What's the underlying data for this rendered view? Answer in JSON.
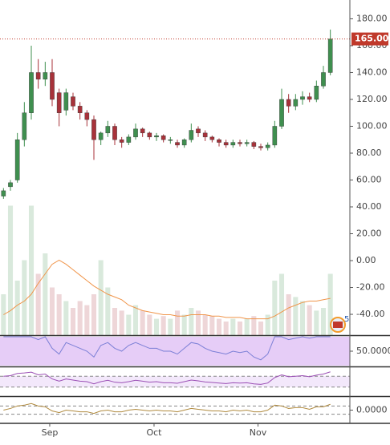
{
  "chart_data": {
    "type": "candlestick",
    "xlim": [
      -0.5,
      47.5
    ],
    "xticks": [
      {
        "value": 6.65,
        "label": "Sep"
      },
      {
        "value": 21.65,
        "label": "Oct"
      },
      {
        "value": 36.6,
        "label": "Nov"
      }
    ],
    "ylim": [
      -55.5,
      194
    ],
    "yticks": [
      {
        "value": 180,
        "label": "180.00"
      },
      {
        "value": 160,
        "label": "160.00"
      },
      {
        "value": 140,
        "label": "140.00"
      },
      {
        "value": 120,
        "label": "120.00"
      },
      {
        "value": 100,
        "label": "100.00"
      },
      {
        "value": 80,
        "label": "80.00"
      },
      {
        "value": 60,
        "label": "60.00"
      },
      {
        "value": 40,
        "label": "40.00"
      },
      {
        "value": 20,
        "label": "20.00"
      },
      {
        "value": 0,
        "label": "0.00"
      },
      {
        "value": -20,
        "label": "-20.00"
      },
      {
        "value": -40,
        "label": "-40.00"
      }
    ],
    "up_color": "#3f8f4f",
    "down_color": "#a8323a",
    "open": [
      48,
      55,
      60,
      90,
      110,
      140,
      135,
      140,
      125,
      112,
      122,
      115,
      110,
      105,
      90,
      95,
      100,
      90,
      88,
      92,
      98,
      95,
      92,
      93,
      90,
      88,
      86,
      90,
      98,
      95,
      92,
      90,
      88,
      86,
      88,
      87,
      88,
      85,
      84,
      86,
      100,
      120,
      115,
      120,
      122,
      120,
      130,
      140
    ],
    "high": [
      54,
      60,
      95,
      118,
      160,
      150,
      148,
      150,
      128,
      128,
      125,
      118,
      112,
      108,
      96,
      104,
      102,
      92,
      94,
      102,
      99,
      96,
      95,
      94,
      92,
      90,
      91,
      102,
      100,
      97,
      93,
      91,
      90,
      90,
      90,
      90,
      89,
      87,
      88,
      104,
      128,
      124,
      124,
      126,
      125,
      134,
      145,
      172
    ],
    "low": [
      46,
      52,
      58,
      85,
      105,
      128,
      130,
      115,
      100,
      108,
      112,
      105,
      100,
      75,
      86,
      92,
      86,
      84,
      86,
      90,
      92,
      90,
      89,
      88,
      87,
      84,
      84,
      88,
      92,
      89,
      88,
      85,
      84,
      84,
      85,
      85,
      83,
      82,
      82,
      84,
      98,
      110,
      112,
      116,
      118,
      118,
      128,
      138
    ],
    "close": [
      52,
      58,
      90,
      110,
      140,
      135,
      140,
      120,
      110,
      125,
      115,
      110,
      105,
      90,
      95,
      100,
      90,
      88,
      92,
      98,
      95,
      92,
      93,
      90,
      90,
      86,
      90,
      97,
      95,
      92,
      90,
      88,
      86,
      88,
      87,
      88,
      85,
      84,
      86,
      100,
      120,
      115,
      120,
      122,
      120,
      130,
      140,
      165
    ],
    "last_price": {
      "value": 165,
      "label": "165.00"
    },
    "last_price_color": "#c0392b",
    "volume_ylim": [
      0,
      100
    ],
    "volume": [
      30,
      95,
      40,
      55,
      95,
      45,
      60,
      35,
      30,
      25,
      20,
      25,
      22,
      30,
      55,
      35,
      20,
      18,
      15,
      22,
      18,
      15,
      12,
      14,
      12,
      18,
      15,
      20,
      18,
      15,
      14,
      12,
      10,
      12,
      10,
      12,
      14,
      10,
      15,
      40,
      45,
      30,
      28,
      25,
      22,
      18,
      20,
      45
    ],
    "volume_ma": [
      15,
      18,
      22,
      25,
      30,
      38,
      45,
      52,
      55,
      52,
      48,
      44,
      40,
      36,
      33,
      30,
      28,
      26,
      22,
      20,
      18,
      17,
      16,
      15,
      15,
      14,
      14,
      15,
      15,
      15,
      14,
      14,
      13,
      13,
      13,
      12,
      12,
      12,
      12,
      14,
      17,
      20,
      22,
      24,
      25,
      25,
      26,
      27
    ],
    "volume_ma_color": "#f0954a",
    "badge": "5",
    "panes": [
      {
        "ylim": [
          0,
          100
        ],
        "yticks": [
          {
            "value": 50,
            "label": "50.0000"
          }
        ],
        "background": "#e6cdf7",
        "series": [
          {
            "color": "#7b7fd6",
            "values": [
              100,
              100,
              100,
              100,
              100,
              90,
              100,
              60,
              40,
              80,
              70,
              60,
              50,
              30,
              70,
              80,
              60,
              50,
              70,
              80,
              70,
              60,
              60,
              50,
              50,
              40,
              60,
              80,
              75,
              60,
              50,
              45,
              40,
              50,
              45,
              50,
              30,
              20,
              40,
              100,
              100,
              90,
              95,
              100,
              95,
              100,
              100,
              100
            ]
          }
        ]
      },
      {
        "ylim": [
          0,
          100
        ],
        "levels": [
          70,
          30
        ],
        "background": "#f3e8fb",
        "series": [
          {
            "color": "#9b4fb5",
            "values": [
              70,
              72,
              80,
              82,
              85,
              75,
              78,
              60,
              52,
              60,
              56,
              52,
              50,
              42,
              50,
              55,
              48,
              46,
              50,
              55,
              52,
              48,
              50,
              46,
              46,
              44,
              50,
              56,
              53,
              49,
              47,
              45,
              43,
              46,
              45,
              46,
              42,
              40,
              45,
              65,
              75,
              68,
              70,
              72,
              68,
              74,
              78,
              86
            ]
          }
        ]
      },
      {
        "ylim": [
          -1.5,
          1.5
        ],
        "yticks": [
          {
            "value": 0,
            "label": "0.0000"
          }
        ],
        "levels": [
          0.5,
          -0.5
        ],
        "series": [
          {
            "color": "#b08a3e",
            "values": [
              0,
              0.2,
              0.5,
              0.6,
              0.8,
              0.5,
              0.4,
              -0.1,
              -0.3,
              0,
              -0.1,
              -0.2,
              -0.2,
              -0.4,
              -0.1,
              0,
              -0.2,
              -0.2,
              0,
              0.1,
              0,
              -0.1,
              0,
              -0.1,
              -0.1,
              -0.2,
              0,
              0.2,
              0.1,
              0,
              -0.1,
              -0.1,
              -0.2,
              0,
              -0.1,
              0,
              -0.2,
              -0.2,
              0,
              0.6,
              0.5,
              0.2,
              0.3,
              0.3,
              0.1,
              0.4,
              0.4,
              0.7
            ]
          }
        ]
      }
    ]
  }
}
